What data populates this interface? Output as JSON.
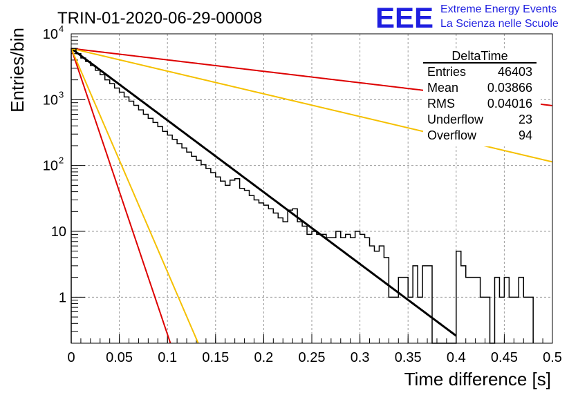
{
  "header": {
    "run_title": "TRIN-01-2020-06-29-00008",
    "logo_text": "EEE",
    "logo_line1": "Extreme Energy Events",
    "logo_line2": "La Scienza nelle Scuole",
    "logo_color": "#1f1fe0"
  },
  "stats_box": {
    "title": "DeltaTime",
    "rows": [
      {
        "label": "Entries",
        "value": "46403"
      },
      {
        "label": "Mean",
        "value": "0.03866"
      },
      {
        "label": "RMS",
        "value": "0.04016"
      },
      {
        "label": "Underflow",
        "value": "23"
      },
      {
        "label": "Overflow",
        "value": "94"
      }
    ]
  },
  "chart_data": {
    "type": "line",
    "xlabel": "Time difference [s]",
    "ylabel": "Entries/bin",
    "xlim": [
      0,
      0.5
    ],
    "ylim": [
      0.2,
      10000
    ],
    "y_scale": "log",
    "grid": true,
    "x_ticks": [
      "0",
      "0.05",
      "0.1",
      "0.15",
      "0.2",
      "0.25",
      "0.3",
      "0.35",
      "0.4",
      "0.45",
      "0.5"
    ],
    "y_ticks": [
      {
        "value": 1,
        "label": "1"
      },
      {
        "value": 10,
        "label": "10"
      },
      {
        "value": 100,
        "label": "10",
        "exp": "2"
      },
      {
        "value": 1000,
        "label": "10",
        "exp": "3"
      },
      {
        "value": 10000,
        "label": "10",
        "exp": "4"
      }
    ],
    "histogram": {
      "bin_width": 0.005,
      "color": "#000000",
      "counts": [
        6000,
        5000,
        4300,
        3800,
        3300,
        2800,
        2400,
        2000,
        1750,
        1500,
        1300,
        1100,
        950,
        820,
        700,
        600,
        520,
        450,
        390,
        330,
        290,
        250,
        215,
        185,
        160,
        138,
        120,
        103,
        90,
        78,
        67,
        58,
        50,
        60,
        63,
        45,
        42,
        35,
        30,
        27,
        25,
        22,
        19,
        16,
        14,
        21,
        22,
        14,
        12,
        9,
        10,
        9,
        9,
        8,
        8,
        10,
        8,
        9,
        8,
        10,
        9,
        8,
        6,
        5,
        6,
        4,
        1,
        1,
        2,
        2,
        1,
        3,
        1,
        3,
        3,
        0,
        0,
        0,
        0,
        0,
        5,
        3,
        2,
        2,
        2,
        1,
        1,
        0,
        2,
        1,
        2,
        1,
        1,
        2,
        1,
        1
      ]
    },
    "series": [
      {
        "name": "",
        "color": "#000000",
        "y0": 6000,
        "tau": 0.0398,
        "x_end": 0.4
      },
      {
        "name": "",
        "color": "#dd0000",
        "y0": 6000,
        "tau": 0.25,
        "x_end": 0.5
      },
      {
        "name": "",
        "color": "#f5c000",
        "y0": 6000,
        "tau": 0.126,
        "x_end": 0.5
      },
      {
        "name": "",
        "color": "#dd0000",
        "y0": 6000,
        "tau": 0.01,
        "x_end": 0.5
      },
      {
        "name": "",
        "color": "#f5c000",
        "y0": 6000,
        "tau": 0.0128,
        "x_end": 0.5
      }
    ]
  }
}
